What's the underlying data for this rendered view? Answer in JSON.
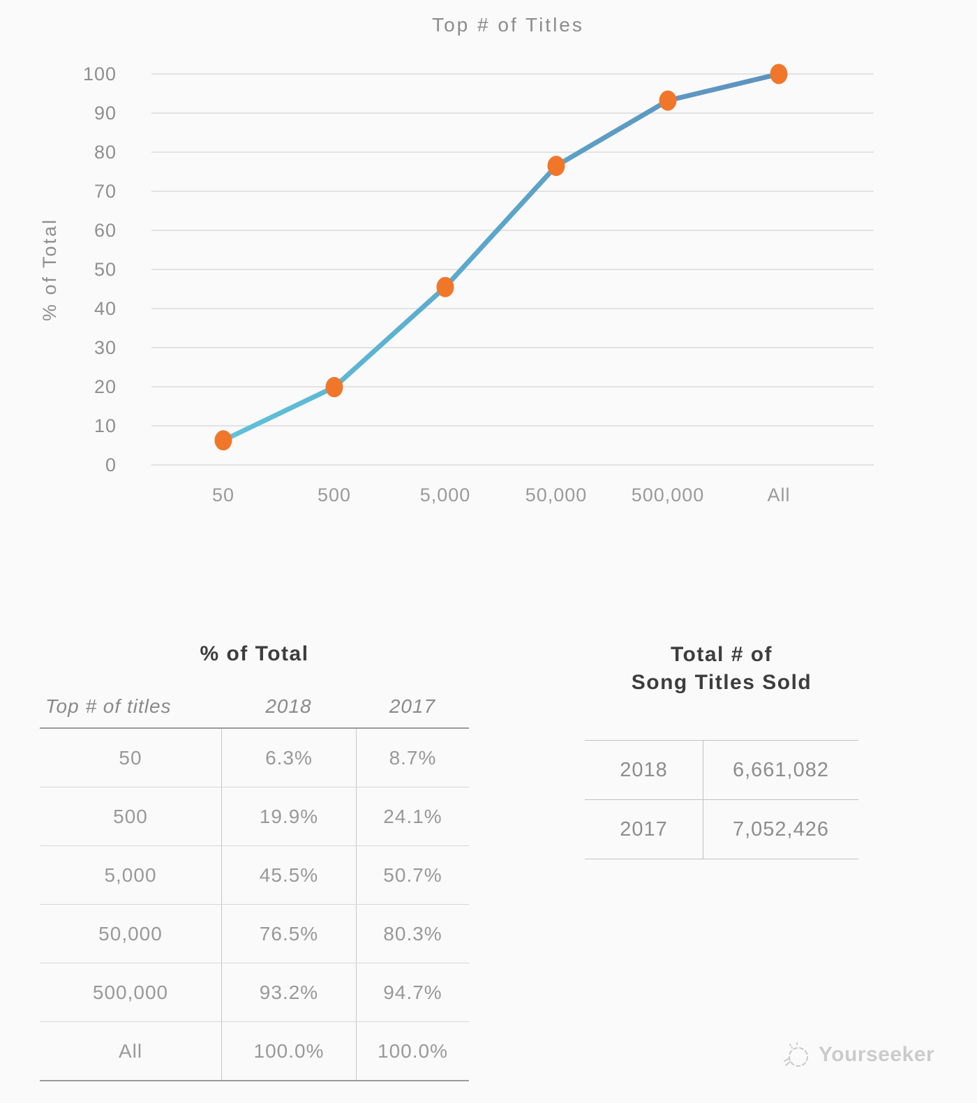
{
  "page": {
    "background": "#fafafa"
  },
  "chart_data": {
    "type": "line",
    "title": "Top # of Titles",
    "xlabel": "",
    "ylabel": "% of Total",
    "categories": [
      "50",
      "500",
      "5,000",
      "50,000",
      "500,000",
      "All"
    ],
    "yticks": [
      0,
      10,
      20,
      30,
      40,
      50,
      60,
      70,
      80,
      90,
      100
    ],
    "ylim": [
      0,
      100
    ],
    "grid": true,
    "legend_position": "none",
    "series": [
      {
        "name": "2018",
        "values": [
          6.3,
          19.9,
          45.5,
          76.5,
          93.2,
          100.0
        ]
      }
    ],
    "line_color_start": "#5ec2d9",
    "line_color_mid": "#5ba6cb",
    "line_color_end": "#5e92be",
    "marker_color": "#f0772a",
    "gridline_color": "#d9d9d9"
  },
  "left_table": {
    "title": "% of Total",
    "columns": [
      "Top # of titles",
      "2018",
      "2017"
    ],
    "rows": [
      [
        "50",
        "6.3%",
        "8.7%"
      ],
      [
        "500",
        "19.9%",
        "24.1%"
      ],
      [
        "5,000",
        "45.5%",
        "50.7%"
      ],
      [
        "50,000",
        "76.5%",
        "80.3%"
      ],
      [
        "500,000",
        "93.2%",
        "94.7%"
      ],
      [
        "All",
        "100.0%",
        "100.0%"
      ]
    ]
  },
  "right_table": {
    "title_line1": "Total # of",
    "title_line2": "Song Titles Sold",
    "rows": [
      [
        "2018",
        "6,661,082"
      ],
      [
        "2017",
        "7,052,426"
      ]
    ]
  },
  "watermark": {
    "label": "Yourseeker",
    "icon": "sketch-circle-icon"
  }
}
